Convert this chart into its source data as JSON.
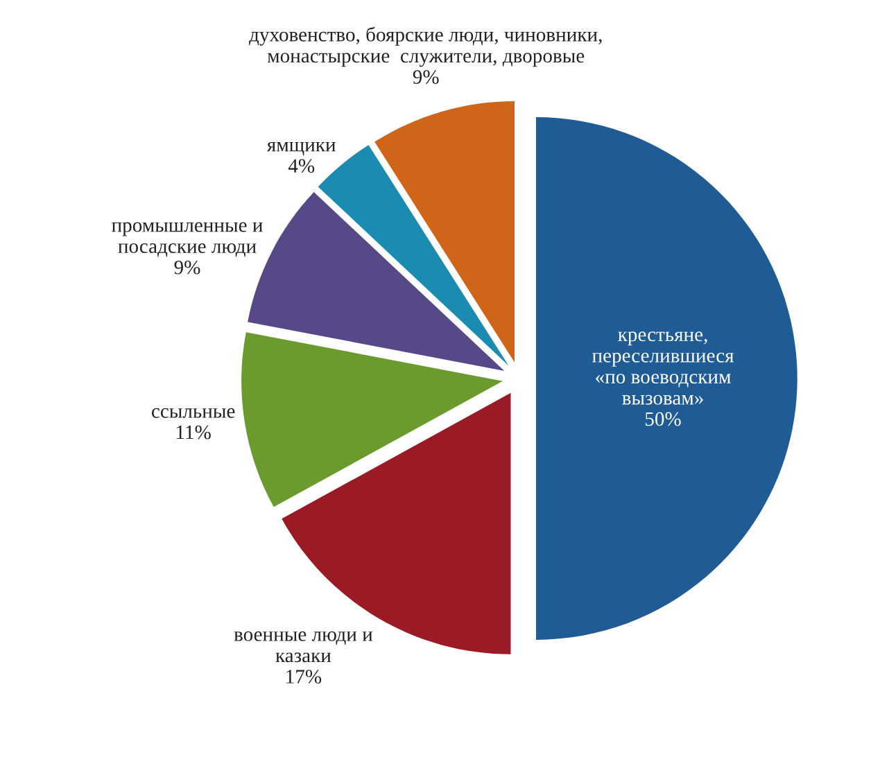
{
  "chart_data": {
    "type": "pie",
    "categories": [
      "крестьяне,\nпереселившиеся\n«по воеводским\nвызовам»",
      "военные люди и\nказаки",
      "ссыльные",
      "промышленные и\nпосадские люди",
      "ямщики",
      "духовенство, боярские люди, чиновники,\nмонастырские  служители, дворовые"
    ],
    "values": [
      50,
      17,
      11,
      9,
      4,
      9
    ],
    "value_labels": [
      "50%",
      "17%",
      "11%",
      "9%",
      "4%",
      "9%"
    ],
    "colors": [
      "#1f5c96",
      "#9a1b26",
      "#6b9a2f",
      "#574887",
      "#1b8bb2",
      "#cf6519"
    ],
    "legend": false
  }
}
